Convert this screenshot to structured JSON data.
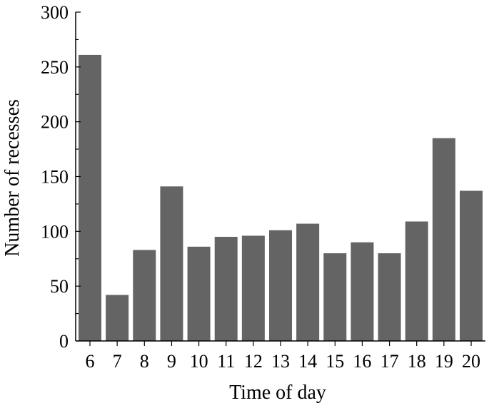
{
  "chart_data": {
    "type": "bar",
    "categories": [
      "6",
      "7",
      "8",
      "9",
      "10",
      "11",
      "12",
      "13",
      "14",
      "15",
      "16",
      "17",
      "18",
      "19",
      "20"
    ],
    "values": [
      261,
      42,
      83,
      141,
      86,
      95,
      96,
      101,
      107,
      80,
      90,
      80,
      109,
      185,
      137
    ],
    "title": "",
    "xlabel": "Time of day",
    "ylabel": "Number of recesses",
    "ylim": [
      0,
      300
    ],
    "yticks": [
      0,
      50,
      100,
      150,
      200,
      250,
      300
    ],
    "bar_color": "#646464",
    "grid": false
  }
}
